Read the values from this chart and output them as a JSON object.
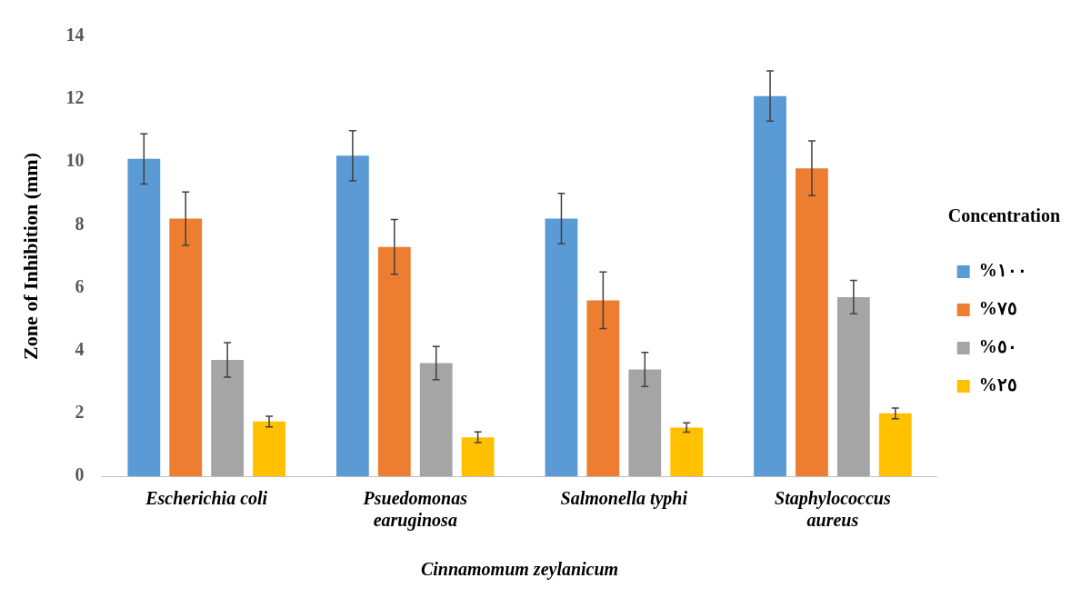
{
  "chart_data": {
    "type": "bar",
    "xlabel": "Cinnamomum zeylanicum",
    "ylabel": "Zone of Inhibition (mm)",
    "legend_title": "Concentration",
    "legend": "right",
    "grid": false,
    "categories": [
      "Escherichia coli",
      "Psuedomonas earuginosa",
      "Salmonella typhi",
      "Staphylococcus aureus"
    ],
    "ylim": [
      0,
      14
    ],
    "yticks": [
      0,
      2,
      4,
      6,
      8,
      10,
      12,
      14
    ],
    "series": [
      {
        "name": "%١٠٠",
        "color": "#5b9bd5",
        "values": [
          10.1,
          10.2,
          8.2,
          12.1
        ],
        "errors": [
          0.8,
          0.8,
          0.8,
          0.8
        ]
      },
      {
        "name": "%٧٥",
        "color": "#ed7d31",
        "values": [
          8.2,
          7.3,
          5.6,
          9.8
        ],
        "errors": [
          0.85,
          0.87,
          0.9,
          0.87
        ]
      },
      {
        "name": "%٥٠",
        "color": "#a5a5a5",
        "values": [
          3.7,
          3.6,
          3.4,
          5.7
        ],
        "errors": [
          0.55,
          0.53,
          0.54,
          0.53
        ]
      },
      {
        "name": "%٢٥",
        "color": "#ffc000",
        "values": [
          1.74,
          1.24,
          1.55,
          2.0
        ],
        "errors": [
          0.17,
          0.17,
          0.15,
          0.17
        ]
      }
    ]
  }
}
